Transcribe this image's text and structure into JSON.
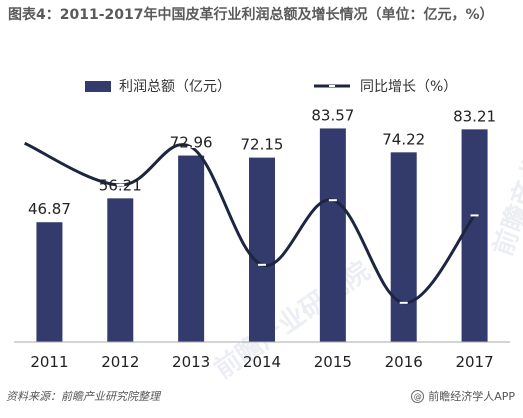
{
  "title": "图表4：2011-2017年中国皮革行业利润总额及增长情况（单位：亿元，%）",
  "legend": {
    "bar_label": "利润总额（亿元）",
    "line_label": "同比增长（%）"
  },
  "source": "资料来源：前瞻产业研究院整理",
  "credit": "前瞻经济学人APP",
  "credit_icon": "@",
  "watermarks": [
    "前瞻产业研究院",
    "前瞻产业研究院"
  ],
  "colors": {
    "bar": "#333b6c",
    "line": "#1e2540",
    "axis": "#aaaaaa",
    "marker": "#ffffff"
  },
  "chart_data": {
    "type": "bar",
    "categories": [
      "2011",
      "2012",
      "2013",
      "2014",
      "2015",
      "2016",
      "2017"
    ],
    "series": [
      {
        "name": "利润总额（亿元）",
        "type": "bar",
        "values": [
          46.87,
          56.21,
          72.96,
          72.15,
          83.57,
          74.22,
          83.21
        ],
        "ylim": [
          0,
          90
        ]
      },
      {
        "name": "同比增长（%）",
        "type": "line",
        "values": [
          null,
          20,
          30,
          -1,
          16,
          -11,
          12
        ],
        "ylim": [
          -15,
          35
        ]
      }
    ],
    "title": "图表4：2011-2017年中国皮革行业利润总额及增长情况（单位：亿元，%）",
    "xlabel": "",
    "ylabel": "",
    "grid": false,
    "legend": "top"
  }
}
